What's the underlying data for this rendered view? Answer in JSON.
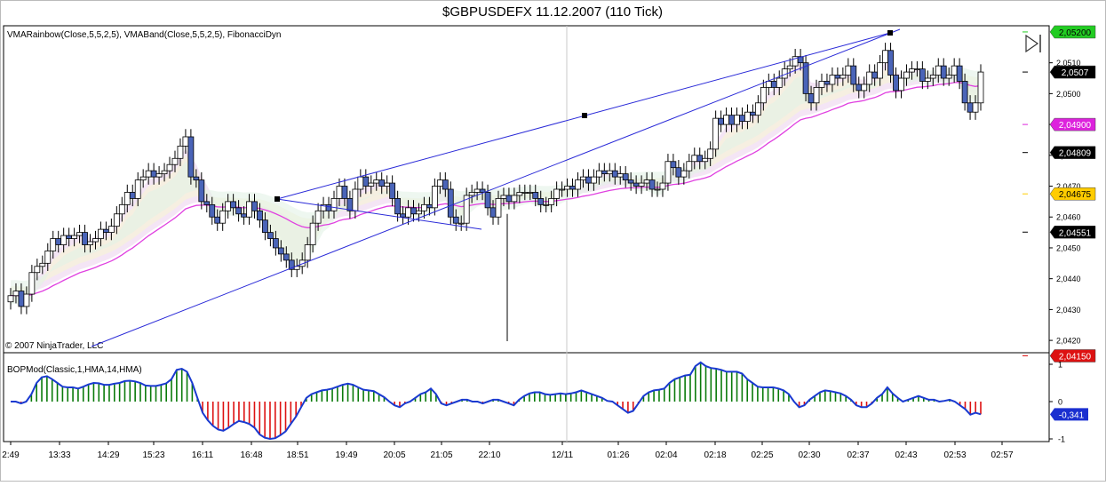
{
  "window_title": "$GBPUSDEFX  11.12.2007 (110 Tick)",
  "price_panel": {
    "indicator_label": "VMARainbow(Close,5,5,2,5), VMABand(Close,5,5,2,5), FibonacciDyn",
    "copyright": "© 2007 NinjaTrader, LLC",
    "end_icon": "play-to-end-icon"
  },
  "oscillator_panel": {
    "indicator_label": "BOPMod(Classic,1,HMA,14,HMA)"
  },
  "colors": {
    "up_bar": "#ffffff",
    "down_bar": "#4a64b8",
    "wick": "#000000",
    "trendline": "#2b2bd8",
    "vma": "#e040e0",
    "histogram_pos": "#0a7a0a",
    "histogram_neg": "#dd1111",
    "oscillator_line": "#1a3ad0",
    "badge_green": "#22cc22",
    "badge_black": "#000000",
    "badge_magenta": "#dd22dd",
    "badge_yellow": "#ffcc00",
    "badge_red": "#dd1111",
    "badge_blue": "#1a2fd0"
  },
  "chart_data": [
    {
      "type": "candlestick",
      "title": "$GBPUSDEFX  11.12.2007 (110 Tick)",
      "ylim": [
        2.0416,
        2.0522
      ],
      "y_ticks": [
        "2,0510",
        "2,0500",
        "2,0490",
        "2,0480",
        "2,0470",
        "2,0460",
        "2,0450",
        "2,0440",
        "2,0430",
        "2,0420"
      ],
      "x_ticks": [
        "2:49",
        "13:33",
        "14:29",
        "15:23",
        "16:11",
        "16:48",
        "18:51",
        "19:49",
        "20:05",
        "21:05",
        "22:10",
        "12/11",
        "01:26",
        "02:04",
        "02:18",
        "02:25",
        "02:30",
        "02:37",
        "02:43",
        "02:53",
        "02:57"
      ],
      "price_badges": [
        {
          "label": "2,05200",
          "color": "badge_green"
        },
        {
          "label": "2,0507",
          "color": "badge_black"
        },
        {
          "label": "2,04900",
          "color": "badge_magenta"
        },
        {
          "label": "2,04809",
          "color": "badge_black"
        },
        {
          "label": "2,04675",
          "color": "badge_yellow"
        },
        {
          "label": "2,04551",
          "color": "badge_black"
        },
        {
          "label": "2,04150",
          "color": "badge_red"
        }
      ],
      "close": [
        2.04345,
        2.0436,
        2.0431,
        2.0435,
        2.0442,
        2.0444,
        2.0445,
        2.0449,
        2.0453,
        2.0451,
        2.0454,
        2.0453,
        2.0454,
        2.0455,
        2.0451,
        2.0452,
        2.0453,
        2.0456,
        2.0455,
        2.0457,
        2.0461,
        2.0464,
        2.0468,
        2.0466,
        2.0472,
        2.0473,
        2.0475,
        2.0473,
        2.0474,
        2.0475,
        2.0477,
        2.0479,
        2.0483,
        2.0486,
        2.0473,
        2.0472,
        2.0465,
        2.0464,
        2.046,
        2.0458,
        2.0462,
        2.0465,
        2.0463,
        2.0461,
        2.046,
        2.0465,
        2.0462,
        2.0459,
        2.0455,
        2.0453,
        2.045,
        2.0448,
        2.0446,
        2.0443,
        2.0444,
        2.0446,
        2.0451,
        2.0458,
        2.0462,
        2.0464,
        2.0462,
        2.0466,
        2.047,
        2.0466,
        2.0462,
        2.0469,
        2.0473,
        2.047,
        2.0471,
        2.0472,
        2.047,
        2.0471,
        2.0466,
        2.0461,
        2.046,
        2.0463,
        2.0461,
        2.0462,
        2.0464,
        2.0463,
        2.047,
        2.0472,
        2.0469,
        2.046,
        2.0458,
        2.0458,
        2.0467,
        2.0468,
        2.0469,
        2.0468,
        2.0463,
        2.046,
        2.0466,
        2.0467,
        2.0465,
        2.0467,
        2.0468,
        2.0468,
        2.0468,
        2.0466,
        2.0464,
        2.0464,
        2.0466,
        2.0469,
        2.0469,
        2.047,
        2.0469,
        2.0472,
        2.0473,
        2.0471,
        2.0473,
        2.0475,
        2.0474,
        2.0475,
        2.0473,
        2.0474,
        2.0472,
        2.0471,
        2.047,
        2.0471,
        2.0472,
        2.0469,
        2.0469,
        2.0471,
        2.0478,
        2.0476,
        2.0473,
        2.0475,
        2.0478,
        2.048,
        2.0478,
        2.0479,
        2.0482,
        2.0492,
        2.049,
        2.0493,
        2.049,
        2.0493,
        2.0491,
        2.0494,
        2.0493,
        2.0497,
        2.0502,
        2.0504,
        2.0502,
        2.0505,
        2.0508,
        2.0509,
        2.0512,
        2.051,
        2.05,
        2.0497,
        2.0502,
        2.0504,
        2.0503,
        2.0506,
        2.0505,
        2.0506,
        2.0509,
        2.0503,
        2.0501,
        2.0503,
        2.0507,
        2.0505,
        2.051,
        2.0514,
        2.0506,
        2.0501,
        2.0505,
        2.0507,
        2.0508,
        2.0508,
        2.0504,
        2.0505,
        2.0506,
        2.0509,
        2.0505,
        2.0506,
        2.0509,
        2.0504,
        2.0497,
        2.0494,
        2.0497,
        2.0507
      ]
    },
    {
      "type": "area",
      "title": "BOPMod(Classic,1,HMA,14,HMA)",
      "ylim": [
        -1,
        1
      ],
      "y_ticks": [
        "1",
        "0",
        "-1"
      ],
      "current_value_label": "-0,341",
      "values": [
        0.0,
        0.0,
        -0.05,
        0.0,
        0.2,
        0.5,
        0.65,
        0.68,
        0.6,
        0.5,
        0.4,
        0.38,
        0.38,
        0.35,
        0.4,
        0.46,
        0.5,
        0.49,
        0.45,
        0.45,
        0.48,
        0.5,
        0.55,
        0.56,
        0.54,
        0.5,
        0.43,
        0.42,
        0.42,
        0.45,
        0.49,
        0.6,
        0.85,
        0.88,
        0.8,
        0.5,
        0.1,
        -0.3,
        -0.5,
        -0.65,
        -0.75,
        -0.78,
        -0.7,
        -0.6,
        -0.52,
        -0.55,
        -0.6,
        -0.7,
        -0.88,
        -0.97,
        -1.0,
        -0.98,
        -0.9,
        -0.8,
        -0.6,
        -0.4,
        -0.15,
        0.1,
        0.2,
        0.25,
        0.3,
        0.32,
        0.35,
        0.4,
        0.45,
        0.48,
        0.45,
        0.38,
        0.32,
        0.3,
        0.28,
        0.2,
        0.12,
        0.0,
        -0.1,
        -0.15,
        -0.05,
        0.0,
        0.1,
        0.2,
        0.25,
        0.35,
        0.2,
        -0.05,
        -0.1,
        -0.05,
        0.0,
        0.05,
        0.05,
        0.0,
        0.0,
        -0.05,
        0.0,
        0.05,
        0.05,
        0.0,
        -0.05,
        -0.1,
        0.05,
        0.15,
        0.22,
        0.25,
        0.25,
        0.2,
        0.18,
        0.2,
        0.22,
        0.2,
        0.22,
        0.25,
        0.3,
        0.25,
        0.2,
        0.15,
        0.1,
        0.02,
        0.0,
        -0.1,
        -0.2,
        -0.3,
        -0.25,
        -0.05,
        0.15,
        0.25,
        0.3,
        0.32,
        0.35,
        0.5,
        0.6,
        0.65,
        0.7,
        0.72,
        0.95,
        1.05,
        0.95,
        0.9,
        0.88,
        0.85,
        0.8,
        0.8,
        0.8,
        0.75,
        0.6,
        0.5,
        0.4,
        0.38,
        0.38,
        0.38,
        0.35,
        0.3,
        0.2,
        0.0,
        -0.15,
        -0.1,
        0.05,
        0.15,
        0.25,
        0.3,
        0.28,
        0.25,
        0.22,
        0.15,
        0.05,
        -0.1,
        -0.15,
        -0.15,
        -0.05,
        0.1,
        0.2,
        0.38,
        0.22,
        0.1,
        0.0,
        0.05,
        0.1,
        0.15,
        0.1,
        0.05,
        0.05,
        0.0,
        0.02,
        0.05,
        0.0,
        -0.1,
        -0.2,
        -0.35,
        -0.3,
        -0.341
      ]
    }
  ]
}
